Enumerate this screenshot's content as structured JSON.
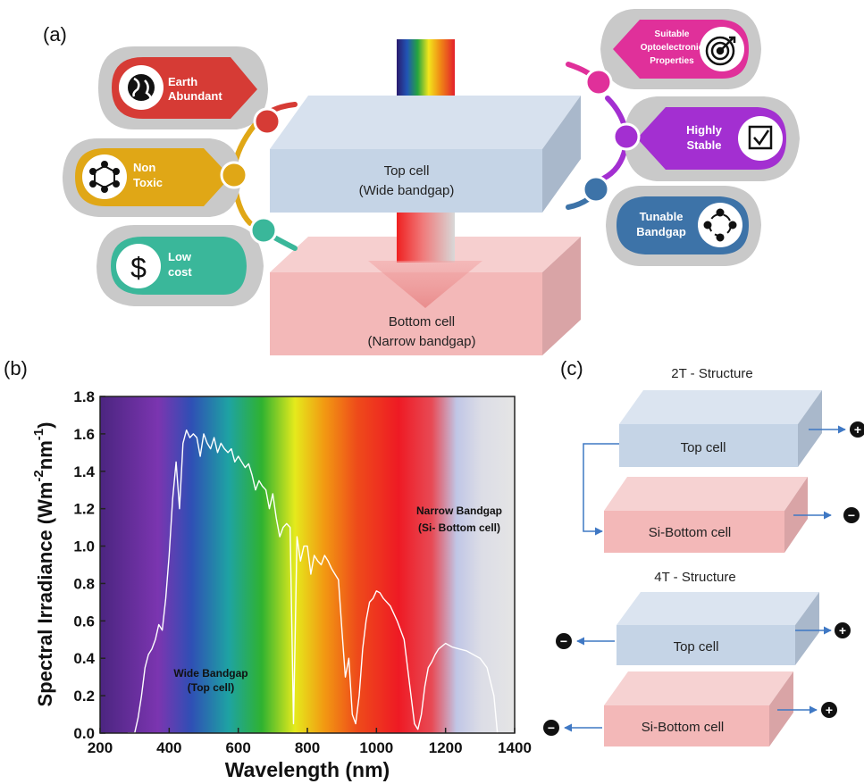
{
  "panel_a": {
    "label": "(a)",
    "top_cell": {
      "line1": "Top cell",
      "line2": "(Wide bandgap)"
    },
    "bottom_cell": {
      "line1": "Bottom cell",
      "line2": "(Narrow bandgap)"
    },
    "features_left": [
      {
        "line1": "Earth",
        "line2": "Abundant",
        "line3": "",
        "color": "#d63b35",
        "icon": "globe-icon"
      },
      {
        "line1": "Non",
        "line2": "Toxic",
        "line3": "",
        "color": "#e0a716",
        "icon": "molecule-icon"
      },
      {
        "line1": "Low",
        "line2": "cost",
        "line3": "",
        "color": "#3ab79a",
        "icon": "dollar-icon"
      }
    ],
    "features_right": [
      {
        "line1": "Suitable",
        "line2": "Optoelectronic",
        "line3": "Properties",
        "color": "#e0309a",
        "icon": "target-icon"
      },
      {
        "line1": "Highly",
        "line2": "Stable",
        "line3": "",
        "color": "#a32fd1",
        "icon": "checkbox-icon"
      },
      {
        "line1": "Tunable",
        "line2": "Bandgap",
        "line3": "",
        "color": "#3d73a8",
        "icon": "cycle-icon"
      }
    ],
    "dollar_symbol": "$"
  },
  "panel_b": {
    "label": "(b)",
    "annotations": {
      "wide_line1": "Wide Bandgap",
      "wide_line2": "(Top cell)",
      "narrow_line1": "Narrow Bandgap",
      "narrow_line2": "(Si- Bottom cell)"
    }
  },
  "panel_c": {
    "label": "(c)",
    "title_2t": "2T - Structure",
    "title_4t": "4T - Structure",
    "top_cell": "Top cell",
    "bottom_cell": "Si-Bottom cell",
    "plus": "+",
    "minus": "−"
  },
  "chart_data": {
    "type": "line",
    "title": "",
    "xlabel": "Wavelength (nm)",
    "ylabel_main": "Spectral Irradiance (Wm",
    "ylabel_sup1": "-2",
    "ylabel_mid": "nm",
    "ylabel_sup2": "-1",
    "ylabel_end": ")",
    "xlim": [
      200,
      1400
    ],
    "ylim": [
      0.0,
      1.8
    ],
    "xticks": [
      "200",
      "400",
      "600",
      "800",
      "1000",
      "1200",
      "1400"
    ],
    "yticks": [
      "0.0",
      "0.2",
      "0.4",
      "0.6",
      "0.8",
      "1.0",
      "1.2",
      "1.4",
      "1.6",
      "1.8"
    ],
    "grid": false,
    "series": [
      {
        "line_color": "#ffffff",
        "x": [
          280,
          300,
          310,
          320,
          330,
          340,
          350,
          360,
          370,
          380,
          390,
          400,
          410,
          420,
          430,
          440,
          450,
          460,
          470,
          480,
          490,
          500,
          510,
          520,
          530,
          540,
          550,
          560,
          570,
          580,
          590,
          600,
          610,
          620,
          630,
          640,
          650,
          660,
          670,
          680,
          690,
          700,
          710,
          720,
          730,
          740,
          750,
          760,
          770,
          780,
          790,
          800,
          810,
          820,
          830,
          840,
          850,
          860,
          870,
          880,
          890,
          900,
          910,
          920,
          930,
          940,
          950,
          960,
          970,
          980,
          990,
          1000,
          1010,
          1020,
          1040,
          1060,
          1080,
          1100,
          1110,
          1120,
          1130,
          1140,
          1150,
          1160,
          1170,
          1180,
          1200,
          1220,
          1240,
          1260,
          1280,
          1300,
          1320,
          1340,
          1350
        ],
        "y": [
          0.0,
          0.0,
          0.08,
          0.2,
          0.35,
          0.42,
          0.45,
          0.5,
          0.58,
          0.55,
          0.72,
          0.95,
          1.25,
          1.45,
          1.2,
          1.55,
          1.62,
          1.58,
          1.6,
          1.58,
          1.48,
          1.6,
          1.55,
          1.52,
          1.58,
          1.5,
          1.55,
          1.52,
          1.5,
          1.52,
          1.45,
          1.48,
          1.45,
          1.42,
          1.44,
          1.38,
          1.3,
          1.35,
          1.32,
          1.3,
          1.2,
          1.28,
          1.15,
          1.05,
          1.1,
          1.12,
          1.1,
          0.05,
          1.05,
          0.92,
          1.0,
          1.0,
          0.85,
          0.95,
          0.92,
          0.9,
          0.95,
          0.92,
          0.88,
          0.85,
          0.82,
          0.55,
          0.3,
          0.4,
          0.1,
          0.05,
          0.2,
          0.45,
          0.6,
          0.7,
          0.72,
          0.76,
          0.75,
          0.72,
          0.68,
          0.6,
          0.5,
          0.2,
          0.05,
          0.02,
          0.1,
          0.25,
          0.35,
          0.38,
          0.42,
          0.45,
          0.48,
          0.46,
          0.45,
          0.44,
          0.42,
          0.4,
          0.35,
          0.2,
          0.0
        ]
      }
    ]
  }
}
